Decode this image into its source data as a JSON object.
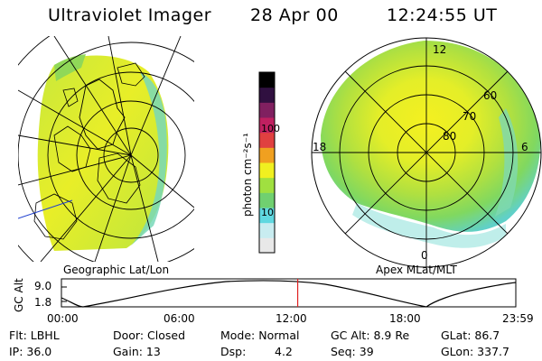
{
  "header": {
    "title": "Ultraviolet Imager",
    "date": "28 Apr 00",
    "time": "12:24:55 UT"
  },
  "left_panel": {
    "caption": "Geographic Lat/Lon"
  },
  "right_panel": {
    "caption": "Apex MLat/MLT",
    "mlt_labels": [
      "12",
      "18",
      "6",
      "0"
    ],
    "lat_labels": [
      "60",
      "70",
      "80"
    ]
  },
  "colorbar": {
    "unit": "photon cm⁻²s⁻¹",
    "ticks": [
      "100",
      "10"
    ],
    "colors": [
      "#e8e8e8",
      "#c8ecf0",
      "#60d8e0",
      "#70d070",
      "#a0e040",
      "#f0f020",
      "#f0a020",
      "#e04040",
      "#c02060",
      "#802060",
      "#301040",
      "#000000"
    ]
  },
  "altitude_plot": {
    "ylabel": "GC Alt",
    "yticks": [
      "9.0",
      "1.8"
    ],
    "xticks": [
      "00:00",
      "06:00",
      "12:00",
      "18:00",
      "23:59"
    ],
    "current_time_fraction": 0.52,
    "marker_color": "#e02020"
  },
  "info": {
    "flt": "Flt: LBHL",
    "ip": "IP: 36.0",
    "door": "Door: Closed",
    "gain": "Gain: 13",
    "mode": "Mode: Normal",
    "dsp_label": "Dsp:",
    "dsp_value": "4.2",
    "gc_alt": "GC Alt: 8.9 Re",
    "seq": "Seq: 39",
    "glat": "GLat:  86.7",
    "glon": "GLon: 337.7"
  }
}
